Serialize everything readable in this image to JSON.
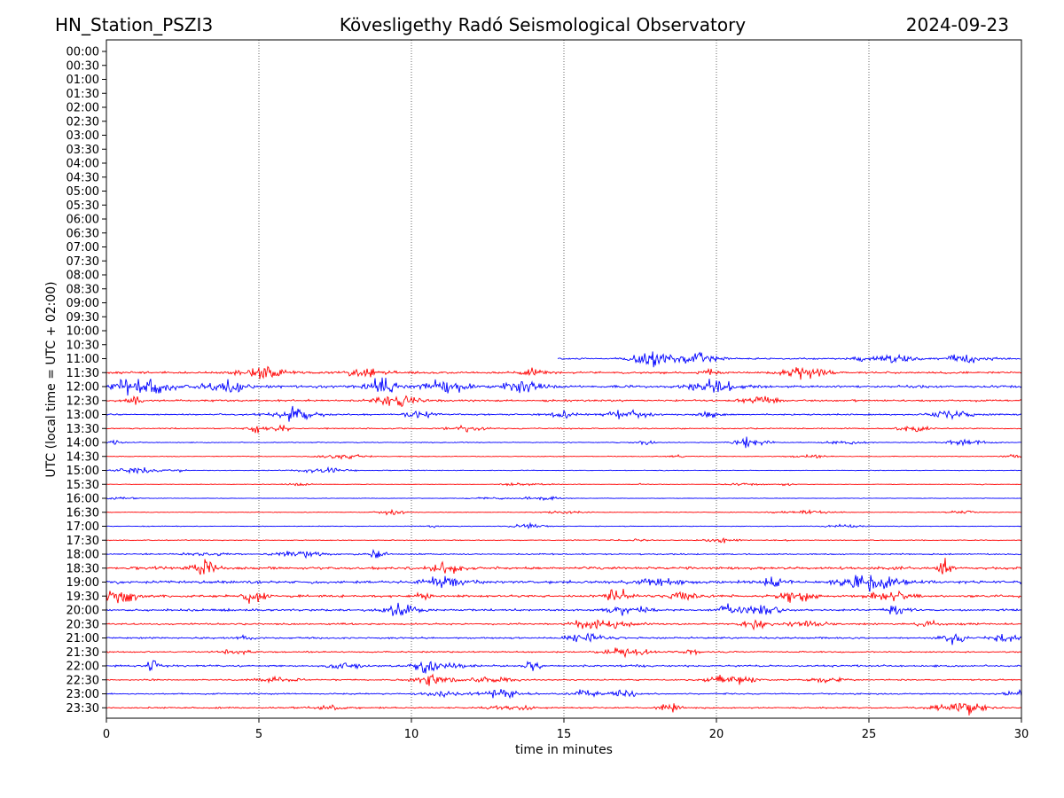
{
  "header": {
    "station": "HN_Station_PSZI3",
    "observatory": "Kövesligethy Radó Seismological Observatory",
    "date": "2024-09-23"
  },
  "chart_data": {
    "type": "line",
    "xlabel": "time in minutes",
    "ylabel": "UTC (local time = UTC + 02:00)",
    "xlim": [
      0,
      30
    ],
    "xticks": [
      0,
      5,
      10,
      15,
      20,
      25,
      30
    ],
    "xtick_labels": [
      "0",
      "5",
      "10",
      "15",
      "20",
      "25",
      "30"
    ],
    "grid": "vertical dotted lines at 5-minute intervals",
    "row_labels": [
      "00:00",
      "00:30",
      "01:00",
      "01:30",
      "02:00",
      "02:30",
      "03:00",
      "03:30",
      "04:00",
      "04:30",
      "05:00",
      "05:30",
      "06:00",
      "06:30",
      "07:00",
      "07:30",
      "08:00",
      "08:30",
      "09:00",
      "09:30",
      "10:00",
      "10:30",
      "11:00",
      "11:30",
      "12:00",
      "12:30",
      "13:00",
      "13:30",
      "14:00",
      "14:30",
      "15:00",
      "15:30",
      "16:00",
      "16:30",
      "17:00",
      "17:30",
      "18:00",
      "18:30",
      "19:00",
      "19:30",
      "20:00",
      "20:30",
      "21:00",
      "21:30",
      "22:00",
      "22:30",
      "23:00",
      "23:30"
    ],
    "row_colors": [
      "#0000ff",
      "#ff0000"
    ],
    "traces": [
      {
        "row": "11:00",
        "start_min": 14.8,
        "end_min": 30,
        "amplitude": 0.18,
        "color": "#0000ff"
      },
      {
        "row": "11:30",
        "start_min": 0,
        "end_min": 30,
        "amplitude": 0.22,
        "color": "#ff0000"
      },
      {
        "row": "12:00",
        "start_min": 0,
        "end_min": 30,
        "amplitude": 0.3,
        "color": "#0000ff"
      },
      {
        "row": "12:30",
        "start_min": 0,
        "end_min": 30,
        "amplitude": 0.22,
        "color": "#ff0000"
      },
      {
        "row": "13:00",
        "start_min": 0,
        "end_min": 30,
        "amplitude": 0.18,
        "color": "#0000ff"
      },
      {
        "row": "13:30",
        "start_min": 0,
        "end_min": 30,
        "amplitude": 0.14,
        "color": "#ff0000"
      },
      {
        "row": "14:00",
        "start_min": 0,
        "end_min": 30,
        "amplitude": 0.1,
        "color": "#0000ff"
      },
      {
        "row": "14:30",
        "start_min": 0,
        "end_min": 30,
        "amplitude": 0.08,
        "color": "#ff0000"
      },
      {
        "row": "15:00",
        "start_min": 0,
        "end_min": 30,
        "amplitude": 0.08,
        "color": "#0000ff"
      },
      {
        "row": "15:30",
        "start_min": 0,
        "end_min": 30,
        "amplitude": 0.06,
        "color": "#ff0000"
      },
      {
        "row": "16:00",
        "start_min": 0,
        "end_min": 30,
        "amplitude": 0.06,
        "color": "#0000ff"
      },
      {
        "row": "16:30",
        "start_min": 0,
        "end_min": 30,
        "amplitude": 0.07,
        "color": "#ff0000"
      },
      {
        "row": "17:00",
        "start_min": 0,
        "end_min": 30,
        "amplitude": 0.08,
        "color": "#0000ff"
      },
      {
        "row": "17:30",
        "start_min": 0,
        "end_min": 30,
        "amplitude": 0.1,
        "color": "#ff0000"
      },
      {
        "row": "18:00",
        "start_min": 0,
        "end_min": 30,
        "amplitude": 0.15,
        "color": "#0000ff"
      },
      {
        "row": "18:30",
        "start_min": 0,
        "end_min": 30,
        "amplitude": 0.3,
        "color": "#ff0000"
      },
      {
        "row": "19:00",
        "start_min": 0,
        "end_min": 30,
        "amplitude": 0.34,
        "color": "#0000ff"
      },
      {
        "row": "19:30",
        "start_min": 0,
        "end_min": 30,
        "amplitude": 0.28,
        "color": "#ff0000"
      },
      {
        "row": "20:00",
        "start_min": 0,
        "end_min": 30,
        "amplitude": 0.24,
        "color": "#0000ff"
      },
      {
        "row": "20:30",
        "start_min": 0,
        "end_min": 30,
        "amplitude": 0.2,
        "color": "#ff0000"
      },
      {
        "row": "21:00",
        "start_min": 0,
        "end_min": 30,
        "amplitude": 0.2,
        "color": "#0000ff"
      },
      {
        "row": "21:30",
        "start_min": 0,
        "end_min": 30,
        "amplitude": 0.16,
        "color": "#ff0000"
      },
      {
        "row": "22:00",
        "start_min": 0,
        "end_min": 30,
        "amplitude": 0.22,
        "color": "#0000ff"
      },
      {
        "row": "22:30",
        "start_min": 0,
        "end_min": 30,
        "amplitude": 0.16,
        "color": "#ff0000"
      },
      {
        "row": "23:00",
        "start_min": 0,
        "end_min": 30,
        "amplitude": 0.16,
        "color": "#0000ff"
      },
      {
        "row": "23:30",
        "start_min": 0,
        "end_min": 30,
        "amplitude": 0.16,
        "color": "#ff0000"
      }
    ]
  }
}
